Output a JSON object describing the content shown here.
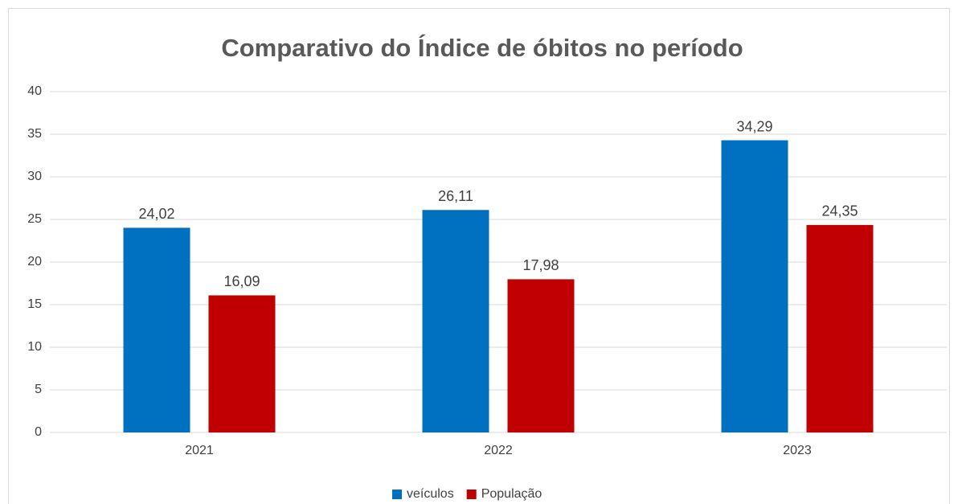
{
  "chart_data": {
    "type": "bar",
    "title": "Comparativo do Índice de óbitos no período",
    "categories": [
      "2021",
      "2022",
      "2023"
    ],
    "series": [
      {
        "name": "veículos",
        "color": "#0070c0",
        "values": [
          24.02,
          26.11,
          34.29
        ],
        "value_labels": [
          "24,02",
          "26,11",
          "34,29"
        ]
      },
      {
        "name": "População",
        "color": "#c00000",
        "values": [
          16.09,
          17.98,
          24.35
        ],
        "value_labels": [
          "16,09",
          "17,98",
          "24,35"
        ]
      }
    ],
    "ylim": [
      0,
      40
    ],
    "yticks": [
      0,
      5,
      10,
      15,
      20,
      25,
      30,
      35,
      40
    ],
    "grid": true,
    "legend": "bottom"
  }
}
